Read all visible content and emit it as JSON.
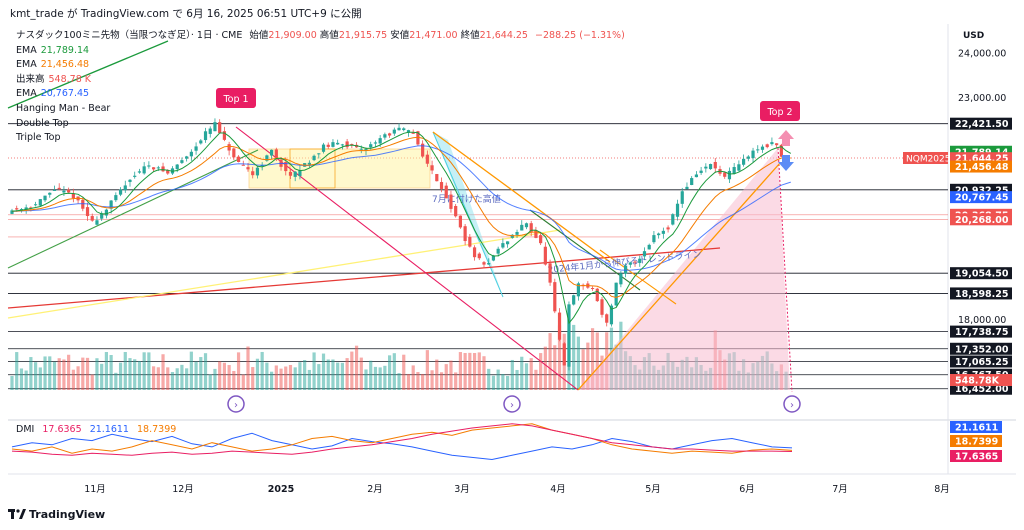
{
  "header": {
    "publisher_line": "kmt_trade が TradingView.com で 6月 16, 2025 06:51 UTC+9 に公開"
  },
  "legend": {
    "symbol": "ナスダック100ミニ先物（当限つなぎ足）· 1日 · CME",
    "open_label": "始値",
    "open_value": "21,909.00",
    "high_label": "高値",
    "high_value": "21,915.75",
    "low_label": "安値",
    "low_value": "21,471.00",
    "close_label": "終値",
    "close_value": "21,644.25",
    "change": "−288.25 (−1.31%)",
    "rows": [
      {
        "label": "EMA",
        "value": "21,789.14",
        "color": "#1b9a3c"
      },
      {
        "label": "EMA",
        "value": "21,456.48",
        "color": "#f57c00"
      },
      {
        "label": "出来高",
        "value": "548.78 K",
        "color": "#ef5350"
      },
      {
        "label": "EMA",
        "value": "20,767.45",
        "color": "#2962ff"
      },
      {
        "label": "Hanging Man - Bear",
        "value": "",
        "color": "#131722"
      },
      {
        "label": "Double Top",
        "value": "",
        "color": "#131722"
      },
      {
        "label": "Triple Top",
        "value": "",
        "color": "#131722"
      }
    ]
  },
  "dmi": {
    "label": "DMI",
    "values": [
      {
        "text": "17.6365",
        "color": "#e91e63"
      },
      {
        "text": "21.1611",
        "color": "#2962ff"
      },
      {
        "text": "18.7399",
        "color": "#f57c00"
      }
    ]
  },
  "currency": "USD",
  "brand": "TradingView",
  "annotations": {
    "top1": "Top 1",
    "top2": "Top 2",
    "july_high": "7月に付けた高値",
    "trendline_2024": "2024年1月から伸びるトレンドライン"
  },
  "chart_data": {
    "type": "candlestick",
    "title": "ナスダック100ミニ先物（当限つなぎ足）· 1日 · CME",
    "timeframe": "1日",
    "x_tick_labels": [
      "11月",
      "12月",
      "2025",
      "2月",
      "3月",
      "4月",
      "5月",
      "6月",
      "7月",
      "8月"
    ],
    "y_tick_labels": [
      {
        "value": 24000,
        "text": "24,000.00"
      },
      {
        "value": 23000,
        "text": "23,000.00"
      },
      {
        "value": 18000,
        "text": "18,000.00"
      }
    ],
    "price_tags": [
      {
        "value": 22421.5,
        "text": "22,421.50",
        "bg": "#131722"
      },
      {
        "value": 21789.14,
        "text": "21,789.14",
        "bg": "#1b9a3c"
      },
      {
        "value": 21644.25,
        "text": "21,644.25",
        "bg": "#ef5350"
      },
      {
        "value": 21456.48,
        "text": "21,456.48",
        "bg": "#f57c00"
      },
      {
        "value": 20932.25,
        "text": "20,932.25",
        "bg": "#131722"
      },
      {
        "value": 20767.45,
        "text": "20,767.45",
        "bg": "#2962ff"
      },
      {
        "value": 20368.75,
        "text": "20,368.75",
        "bg": "#ef5350"
      },
      {
        "value": 20268.0,
        "text": "20,268.00",
        "bg": "#ef5350"
      },
      {
        "value": 19054.5,
        "text": "19,054.50",
        "bg": "#131722"
      },
      {
        "value": 18598.25,
        "text": "18,598.25",
        "bg": "#131722"
      },
      {
        "value": 17738.75,
        "text": "17,738.75",
        "bg": "#131722"
      },
      {
        "value": 17352.0,
        "text": "17,352.00",
        "bg": "#131722"
      },
      {
        "value": 17065.25,
        "text": "17,065.25",
        "bg": "#131722"
      },
      {
        "value": 16767.5,
        "text": "16,767.50",
        "bg": "#131722"
      },
      {
        "value": 16452.0,
        "text": "16,452.00",
        "bg": "#131722"
      }
    ],
    "symbol_tag": "NQM2025",
    "volume_tag": "548.78K",
    "dmi_tags": [
      {
        "text": "21.1611",
        "bg": "#2962ff"
      },
      {
        "text": "18.7399",
        "bg": "#f57c00"
      },
      {
        "text": "17.6365",
        "bg": "#e91e63"
      }
    ],
    "horizontal_levels": [
      22421.5,
      20932.25,
      19054.5,
      18598.25,
      17738.75,
      17352.0,
      17065.25,
      16767.5,
      16452.0
    ],
    "red_levels": [
      20368.75,
      20268.0
    ],
    "price_path": [
      [
        0,
        20450
      ],
      [
        6,
        20600
      ],
      [
        10,
        20950
      ],
      [
        14,
        20800
      ],
      [
        18,
        20200
      ],
      [
        21,
        20500
      ],
      [
        26,
        21200
      ],
      [
        30,
        21500
      ],
      [
        34,
        21300
      ],
      [
        38,
        21700
      ],
      [
        42,
        22200
      ],
      [
        44,
        22421.5
      ],
      [
        46,
        22000
      ],
      [
        49,
        21500
      ],
      [
        52,
        21300
      ],
      [
        56,
        21800
      ],
      [
        60,
        21200
      ],
      [
        63,
        21500
      ],
      [
        67,
        21900
      ],
      [
        71,
        22000
      ],
      [
        75,
        21800
      ],
      [
        79,
        22100
      ],
      [
        83,
        22300
      ],
      [
        86,
        22200
      ],
      [
        89,
        21500
      ],
      [
        92,
        21000
      ],
      [
        95,
        20300
      ],
      [
        98,
        19600
      ],
      [
        101,
        19200
      ],
      [
        104,
        19600
      ],
      [
        107,
        19900
      ],
      [
        110,
        20200
      ],
      [
        113,
        19700
      ],
      [
        115,
        18800
      ],
      [
        117,
        17500
      ],
      [
        118,
        17000
      ],
      [
        119,
        18300
      ],
      [
        121,
        18800
      ],
      [
        124,
        18700
      ],
      [
        127,
        17900
      ],
      [
        129,
        18800
      ],
      [
        131,
        19200
      ],
      [
        134,
        19400
      ],
      [
        137,
        19900
      ],
      [
        140,
        20100
      ],
      [
        143,
        20900
      ],
      [
        146,
        21300
      ],
      [
        149,
        21500
      ],
      [
        152,
        21200
      ],
      [
        155,
        21500
      ],
      [
        158,
        21800
      ],
      [
        161,
        21950
      ],
      [
        163,
        21950
      ],
      [
        164,
        21644.25
      ]
    ],
    "dmi_series": [
      {
        "name": "+DI",
        "color": "#2962ff",
        "values": [
          22,
          26,
          24,
          30,
          28,
          34,
          30,
          27,
          32,
          25,
          22,
          30,
          35,
          28,
          24,
          20,
          23,
          30,
          27,
          25,
          22,
          18,
          14,
          12,
          10,
          14,
          18,
          22,
          20,
          24,
          30,
          27,
          22,
          20,
          24,
          28,
          30,
          26,
          22,
          21
        ]
      },
      {
        "name": "-DI",
        "color": "#f57c00",
        "values": [
          20,
          18,
          22,
          16,
          20,
          18,
          22,
          28,
          24,
          20,
          26,
          22,
          18,
          20,
          24,
          30,
          32,
          28,
          26,
          30,
          34,
          36,
          33,
          38,
          40,
          42,
          44,
          38,
          34,
          30,
          24,
          20,
          18,
          16,
          18,
          17,
          16,
          19,
          20,
          18.7
        ]
      },
      {
        "name": "ADX",
        "color": "#e91e63",
        "values": [
          18,
          17,
          15,
          14,
          16,
          15,
          14,
          16,
          17,
          15,
          16,
          18,
          17,
          16,
          15,
          17,
          20,
          22,
          24,
          27,
          30,
          34,
          37,
          40,
          42,
          44,
          42,
          38,
          34,
          30,
          26,
          24,
          22,
          20,
          20,
          19,
          18,
          18,
          18,
          17.6
        ]
      }
    ]
  }
}
